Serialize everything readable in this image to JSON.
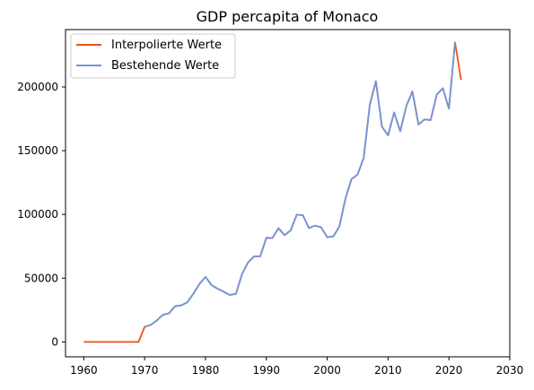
{
  "chart_data": {
    "type": "line",
    "title": "GDP percapita of Monaco",
    "xlabel": "",
    "ylabel": "",
    "xlim": [
      1957.0,
      2030.0
    ],
    "ylim": [
      -11700,
      245000
    ],
    "xticks": [
      1960,
      1970,
      1980,
      1990,
      2000,
      2010,
      2020,
      2030
    ],
    "yticks": [
      0,
      50000,
      100000,
      150000,
      200000
    ],
    "legend_position": "top-left",
    "colors": {
      "interpolated": "#f05019",
      "existing": "#6d96e0",
      "axes": "#000000"
    },
    "series": [
      {
        "name": "Interpolierte Werte",
        "key": "interpolated",
        "x": [
          1960,
          1961,
          1962,
          1963,
          1964,
          1965,
          1966,
          1967,
          1968,
          1969,
          1970,
          1971,
          1972,
          1973,
          1974,
          1975,
          1976,
          1977,
          1978,
          1979,
          1980,
          1981,
          1982,
          1983,
          1984,
          1985,
          1986,
          1987,
          1988,
          1989,
          1990,
          1991,
          1992,
          1993,
          1994,
          1995,
          1996,
          1997,
          1998,
          1999,
          2000,
          2001,
          2002,
          2003,
          2004,
          2005,
          2006,
          2007,
          2008,
          2009,
          2010,
          2011,
          2012,
          2013,
          2014,
          2015,
          2016,
          2017,
          2018,
          2019,
          2020,
          2021,
          2022
        ],
        "values": [
          0,
          0,
          0,
          0,
          0,
          0,
          0,
          0,
          0,
          0,
          11800,
          13300,
          16800,
          21300,
          22400,
          28000,
          28700,
          31000,
          37800,
          45400,
          51000,
          44500,
          41700,
          39300,
          36800,
          37700,
          53100,
          62400,
          67100,
          67200,
          81700,
          81500,
          89200,
          83700,
          87500,
          99800,
          99400,
          89300,
          91200,
          89900,
          82200,
          82700,
          90500,
          112500,
          127800,
          131300,
          144500,
          186000,
          204500,
          168800,
          162000,
          180000,
          165300,
          185000,
          196500,
          170500,
          174500,
          174000,
          194000,
          199000,
          183000,
          235000,
          205500
        ]
      },
      {
        "name": "Bestehende Werte",
        "key": "existing",
        "x": [
          1970,
          1971,
          1972,
          1973,
          1974,
          1975,
          1976,
          1977,
          1978,
          1979,
          1980,
          1981,
          1982,
          1983,
          1984,
          1985,
          1986,
          1987,
          1988,
          1989,
          1990,
          1991,
          1992,
          1993,
          1994,
          1995,
          1996,
          1997,
          1998,
          1999,
          2000,
          2001,
          2002,
          2003,
          2004,
          2005,
          2006,
          2007,
          2008,
          2009,
          2010,
          2011,
          2012,
          2013,
          2014,
          2015,
          2016,
          2017,
          2018,
          2019,
          2020,
          2021
        ],
        "values": [
          11800,
          13300,
          16800,
          21300,
          22400,
          28000,
          28700,
          31000,
          37800,
          45400,
          51000,
          44500,
          41700,
          39300,
          36800,
          37700,
          53100,
          62400,
          67100,
          67200,
          81700,
          81500,
          89200,
          83700,
          87500,
          99800,
          99400,
          89300,
          91200,
          89900,
          82200,
          82700,
          90500,
          112500,
          127800,
          131300,
          144500,
          186000,
          204500,
          168800,
          162000,
          180000,
          165300,
          185000,
          196500,
          170500,
          174500,
          174000,
          194000,
          199000,
          183000,
          235000
        ]
      }
    ]
  }
}
